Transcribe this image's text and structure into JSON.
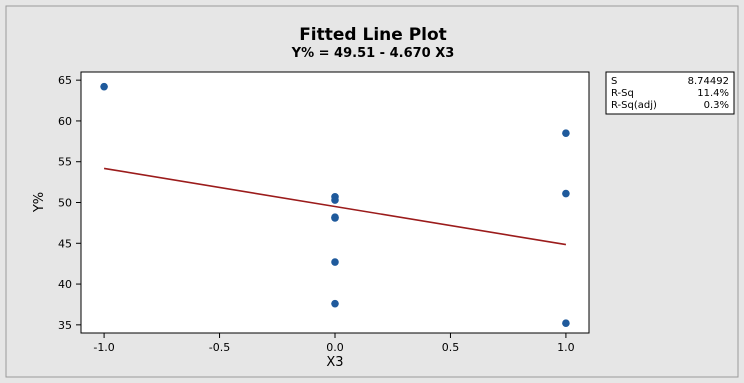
{
  "chart_data": {
    "type": "scatter",
    "title": "Fitted Line Plot",
    "subtitle": "Y% = 49.51 - 4.670 X3",
    "xlabel": "X3",
    "ylabel": "Y%",
    "xlim": [
      -1.1,
      1.1
    ],
    "ylim": [
      34,
      66
    ],
    "x_ticks": [
      -1.0,
      -0.5,
      0.0,
      0.5,
      1.0
    ],
    "x_tick_labels": [
      "-1.0",
      "-0.5",
      "0.0",
      "0.5",
      "1.0"
    ],
    "y_ticks": [
      35,
      40,
      45,
      50,
      55,
      60,
      65
    ],
    "y_tick_labels": [
      "35",
      "40",
      "45",
      "50",
      "55",
      "60",
      "65"
    ],
    "grid": false,
    "points": [
      {
        "x": -1.0,
        "y": 64.2
      },
      {
        "x": 0.0,
        "y": 50.7
      },
      {
        "x": 0.0,
        "y": 50.3
      },
      {
        "x": 0.0,
        "y": 48.2
      },
      {
        "x": 0.0,
        "y": 48.1
      },
      {
        "x": 0.0,
        "y": 42.7
      },
      {
        "x": 0.0,
        "y": 37.6
      },
      {
        "x": 1.0,
        "y": 58.5
      },
      {
        "x": 1.0,
        "y": 51.1
      },
      {
        "x": 1.0,
        "y": 35.2
      }
    ],
    "fit_line": {
      "intercept": 49.51,
      "slope": -4.67,
      "x_range": [
        -1.0,
        1.0
      ]
    },
    "stats": [
      {
        "label": "S",
        "value": "8.74492"
      },
      {
        "label": "R-Sq",
        "value": "11.4%"
      },
      {
        "label": "R-Sq(adj)",
        "value": "0.3%"
      }
    ],
    "colors": {
      "background": "#e6e6e6",
      "plot_area": "#ffffff",
      "point": "#1f5a9c",
      "fit_line": "#9b1b1b"
    }
  }
}
